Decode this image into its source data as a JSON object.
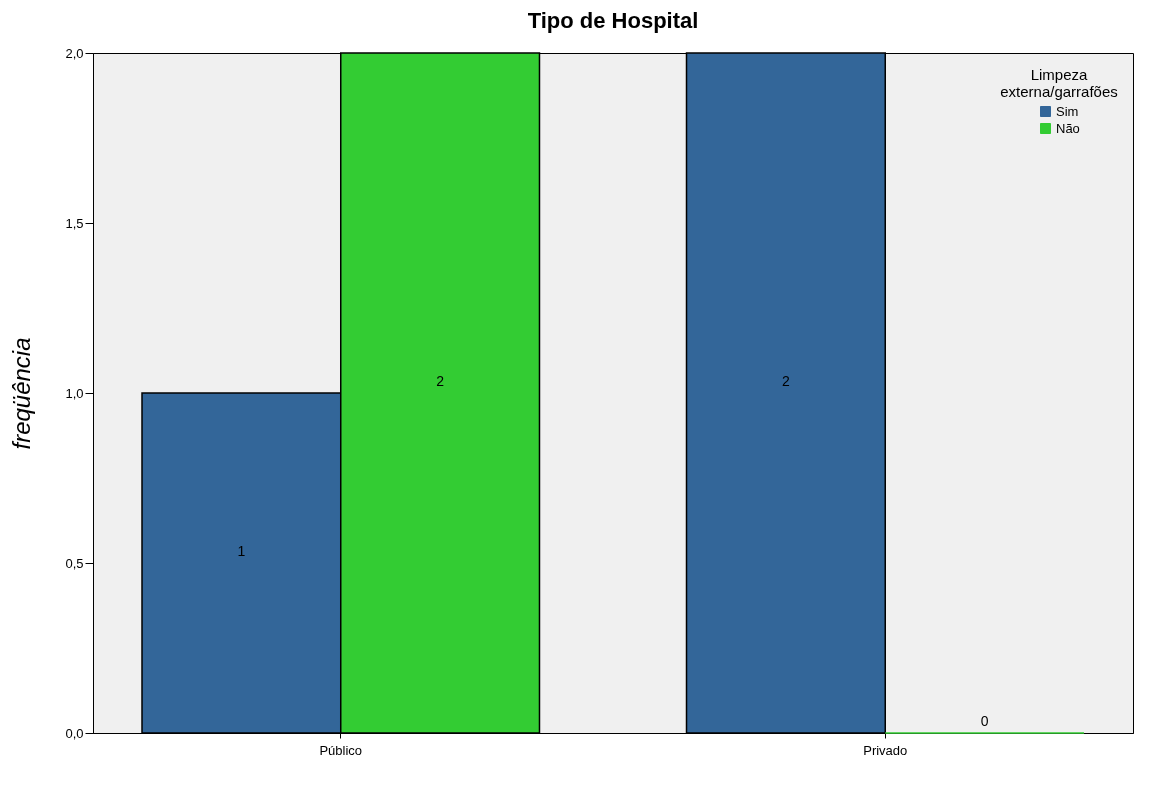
{
  "chart_data": {
    "type": "bar",
    "title": "Tipo de Hospital",
    "ylabel": "freqüência",
    "legend_title": "Limpeza externa/garrafões",
    "categories": [
      "Público",
      "Privado"
    ],
    "series": [
      {
        "name": "Sim",
        "color": "#336699",
        "values": [
          1,
          2
        ]
      },
      {
        "name": "Não",
        "color": "#33cc33",
        "values": [
          2,
          0
        ]
      }
    ],
    "ylim": [
      0,
      2
    ],
    "yticks": [
      {
        "value": 0,
        "label": "0,0"
      },
      {
        "value": 0.5,
        "label": "0,5"
      },
      {
        "value": 1,
        "label": "1,0"
      },
      {
        "value": 1.5,
        "label": "1,5"
      },
      {
        "value": 2,
        "label": "2,0"
      }
    ],
    "data_labels": true,
    "grid": false,
    "legend": "top right"
  }
}
